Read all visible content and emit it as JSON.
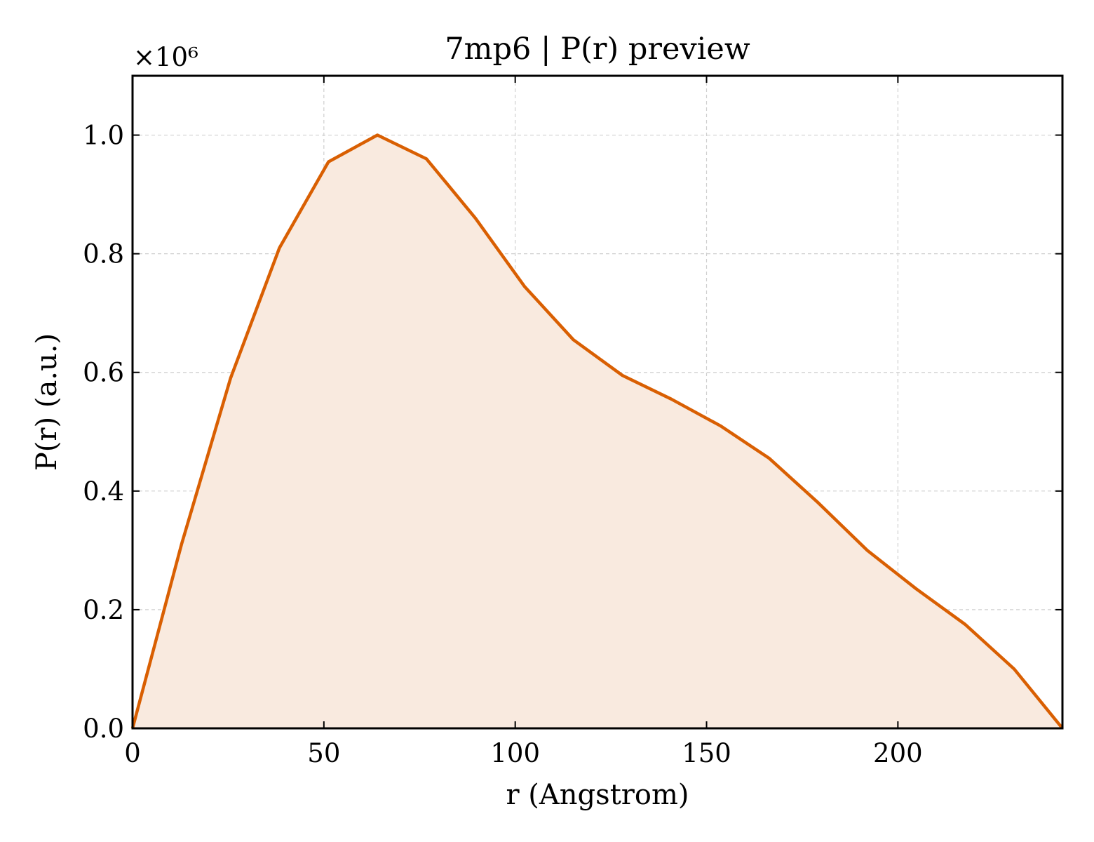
{
  "chart_data": {
    "type": "area",
    "title": "7mp6 | P(r) preview",
    "xlabel": "r (Angstrom)",
    "ylabel": "P(r) (a.u.)",
    "y_offset_label": "×10⁶",
    "y_scale": 1000000,
    "xlim": [
      0,
      243
    ],
    "ylim": [
      0,
      1.1
    ],
    "x_ticks": [
      0,
      50,
      100,
      150,
      200
    ],
    "y_ticks": [
      0.0,
      0.2,
      0.4,
      0.6,
      0.8,
      1.0
    ],
    "x_tick_labels": [
      "0",
      "50",
      "100",
      "150",
      "200"
    ],
    "y_tick_labels": [
      "0.0",
      "0.2",
      "0.4",
      "0.6",
      "0.8",
      "1.0"
    ],
    "grid": true,
    "line_color": "#d95f02",
    "fill_color": "#f9eadf",
    "series": [
      {
        "x": [
          0,
          12.8,
          25.6,
          38.4,
          51.2,
          64.0,
          76.8,
          89.6,
          102.4,
          115.2,
          128.0,
          140.8,
          153.6,
          166.4,
          179.2,
          192.0,
          204.8,
          217.6,
          230.4,
          243.0
        ],
        "y": [
          0.0,
          0.31,
          0.59,
          0.81,
          0.955,
          1.0,
          0.96,
          0.86,
          0.745,
          0.655,
          0.595,
          0.555,
          0.51,
          0.455,
          0.38,
          0.3,
          0.235,
          0.175,
          0.1,
          0.0
        ]
      }
    ]
  }
}
